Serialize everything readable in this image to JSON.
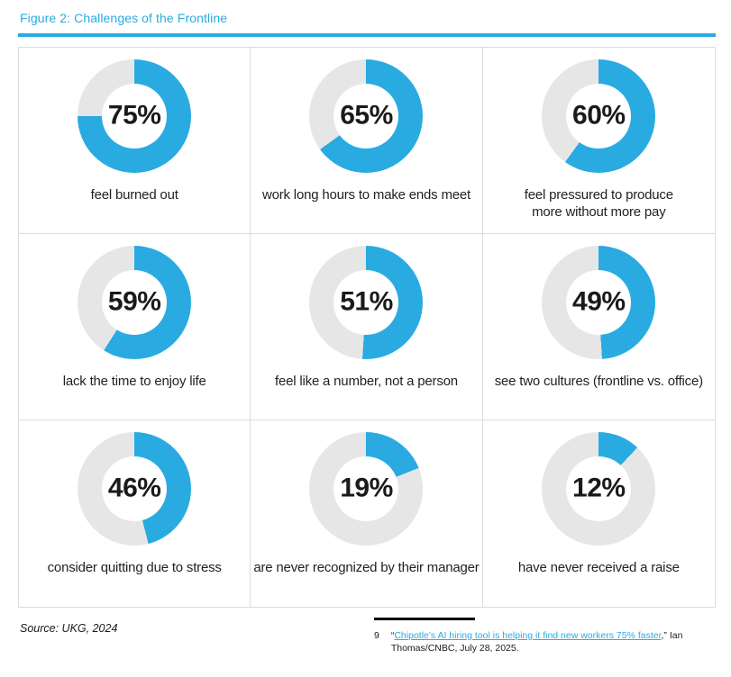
{
  "figure": {
    "title": "Figure 2: Challenges of the Frontline",
    "source": "Source: UKG, 2024"
  },
  "chart_data": {
    "type": "pie",
    "variant": "donut",
    "layout": "3x3-grid",
    "title": "Figure 2: Challenges of the Frontline",
    "value_suffix": "%",
    "items": [
      {
        "percent": 75,
        "label": "feel burned out"
      },
      {
        "percent": 65,
        "label": "work long hours to make ends meet"
      },
      {
        "percent": 60,
        "label": "feel pressured to produce\nmore without more pay"
      },
      {
        "percent": 59,
        "label": "lack the time to enjoy life"
      },
      {
        "percent": 51,
        "label": "feel like a number, not a person"
      },
      {
        "percent": 49,
        "label": "see two cultures (frontline vs. office)"
      },
      {
        "percent": 46,
        "label": "consider quitting due to stress"
      },
      {
        "percent": 19,
        "label": "are never recognized by their manager"
      },
      {
        "percent": 12,
        "label": "have never received a raise"
      }
    ],
    "colors": {
      "filled": "#29abe2",
      "remainder": "#e6e6e6",
      "accent": "#29abe2",
      "grid_border": "#dcdcdc",
      "footnote_rule": "#000000"
    }
  },
  "footnote": {
    "number": "9",
    "prefix": "“",
    "link_text": "Chipotle's AI hiring tool is helping it find new workers 75% faster",
    "suffix": ",” Ian Thomas/CNBC, July 28, 2025."
  }
}
